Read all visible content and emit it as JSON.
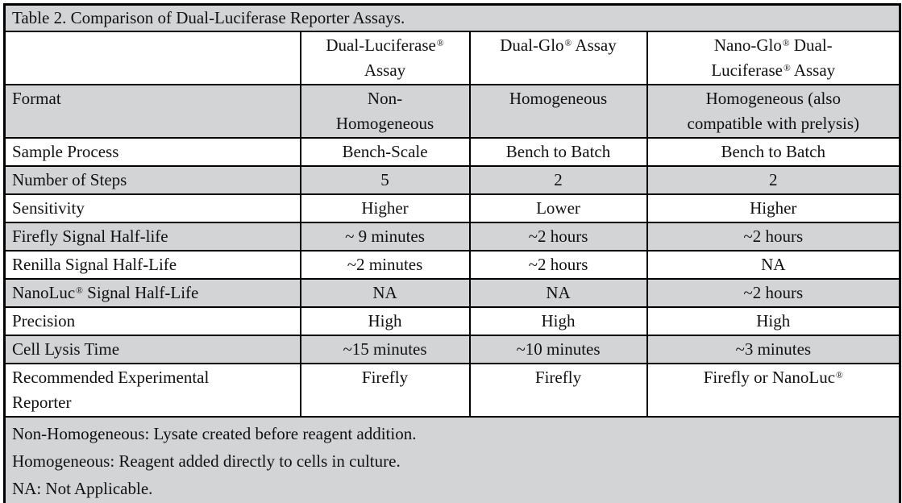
{
  "table": {
    "title": "Table 2. Comparison of Dual-Luciferase Reporter Assays.",
    "columns": [
      "",
      "Dual-Luciferase® Assay",
      "Dual-Glo® Assay",
      "Nano-Glo® Dual-Luciferase® Assay"
    ],
    "rows": [
      {
        "label": "Format",
        "cells": [
          "Non-Homogeneous",
          "Homogeneous",
          "Homogeneous (also compatible with prelysis)"
        ],
        "shaded": true
      },
      {
        "label": "Sample Process",
        "cells": [
          "Bench-Scale",
          "Bench to Batch",
          "Bench to Batch"
        ],
        "shaded": false
      },
      {
        "label": "Number of Steps",
        "cells": [
          "5",
          "2",
          "2"
        ],
        "shaded": true
      },
      {
        "label": "Sensitivity",
        "cells": [
          "Higher",
          "Lower",
          "Higher"
        ],
        "shaded": false
      },
      {
        "label": "Firefly Signal Half-life",
        "cells": [
          "~ 9 minutes",
          "~2 hours",
          "~2 hours"
        ],
        "shaded": true
      },
      {
        "label": "Renilla Signal Half-Life",
        "cells": [
          "~2 minutes",
          "~2 hours",
          "NA"
        ],
        "shaded": false
      },
      {
        "label": "NanoLuc® Signal Half-Life",
        "cells": [
          "NA",
          "NA",
          "~2 hours"
        ],
        "shaded": true
      },
      {
        "label": "Precision",
        "cells": [
          "High",
          "High",
          "High"
        ],
        "shaded": false
      },
      {
        "label": "Cell Lysis Time",
        "cells": [
          "~15 minutes",
          "~10 minutes",
          "~3 minutes"
        ],
        "shaded": true
      },
      {
        "label": "Recommended Experimental Reporter",
        "cells": [
          "Firefly",
          "Firefly",
          "Firefly or NanoLuc®"
        ],
        "shaded": false
      }
    ],
    "footnotes": [
      "Non-Homogeneous: Lysate created before reagent addition.",
      "Homogeneous: Reagent added directly to cells in culture.",
      "NA: Not Applicable."
    ]
  },
  "colors": {
    "shaded_row_bg": "#d2d4d6",
    "border": "#000000",
    "text": "#111111",
    "page_bg": "#ffffff"
  }
}
